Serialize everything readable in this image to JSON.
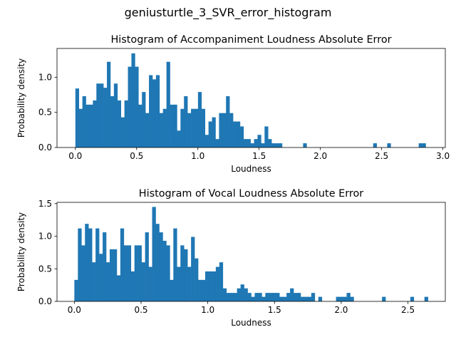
{
  "suptitle": "geniusturtle_3_SVR_error_histogram",
  "colors": {
    "bar": "#1f77b4",
    "axis": "#000000",
    "background": "#ffffff"
  },
  "chart_data": [
    {
      "type": "histogram",
      "title": "Histogram of Accompaniment Loudness Absolute Error",
      "xlabel": "Loudness",
      "ylabel": "Probability density",
      "xlim": [
        -0.15,
        3.02
      ],
      "ylim": [
        0,
        1.41
      ],
      "grid": false,
      "xticks": [
        0.0,
        0.5,
        1.0,
        1.5,
        2.0,
        2.5,
        3.0
      ],
      "xtick_labels": [
        "0.0",
        "0.5",
        "1.0",
        "1.5",
        "2.0",
        "2.5",
        "3.0"
      ],
      "yticks": [
        0.0,
        0.5,
        1.0
      ],
      "ytick_labels": [
        "0.0",
        "0.5",
        "1.0"
      ],
      "bin_start": 0.0,
      "bin_width": 0.0286,
      "densities": [
        0.84,
        0.55,
        0.73,
        0.61,
        0.61,
        0.67,
        0.91,
        0.91,
        0.85,
        1.22,
        0.73,
        0.91,
        0.67,
        0.43,
        0.67,
        1.15,
        1.34,
        1.15,
        0.61,
        0.79,
        0.49,
        1.03,
        0.97,
        1.03,
        0.49,
        0.55,
        1.22,
        0.61,
        0.61,
        0.24,
        0.55,
        0.73,
        0.49,
        0.55,
        0.55,
        0.79,
        0.55,
        0.18,
        0.37,
        0.43,
        0.12,
        0.49,
        0.49,
        0.73,
        0.49,
        0.37,
        0.37,
        0.3,
        0.12,
        0.12,
        0.06,
        0.12,
        0.18,
        0.06,
        0.3,
        0.12,
        0.06,
        0.06,
        0.06,
        0,
        0,
        0,
        0,
        0,
        0,
        0.06,
        0,
        0,
        0,
        0,
        0,
        0,
        0,
        0,
        0,
        0,
        0,
        0,
        0,
        0,
        0,
        0,
        0,
        0,
        0,
        0.06,
        0,
        0,
        0,
        0.06,
        0,
        0,
        0,
        0,
        0,
        0,
        0,
        0,
        0.06,
        0.06
      ]
    },
    {
      "type": "histogram",
      "title": "Histogram of Vocal Loudness Absolute Error",
      "xlabel": "Loudness",
      "ylabel": "Probability density",
      "xlim": [
        -0.13,
        2.78
      ],
      "ylim": [
        0,
        1.52
      ],
      "grid": false,
      "xticks": [
        0.0,
        0.5,
        1.0,
        1.5,
        2.0,
        2.5
      ],
      "xtick_labels": [
        "0.0",
        "0.5",
        "1.0",
        "1.5",
        "2.0",
        "2.5"
      ],
      "yticks": [
        0.0,
        0.5,
        1.0,
        1.5
      ],
      "ytick_labels": [
        "0.0",
        "0.5",
        "1.0",
        "1.5"
      ],
      "bin_start": 0.0,
      "bin_width": 0.0265,
      "densities": [
        0.33,
        1.12,
        0.86,
        1.19,
        1.12,
        0.6,
        1.12,
        0.73,
        1.06,
        0.6,
        0.8,
        0.8,
        0.4,
        1.12,
        0.86,
        0.86,
        0.46,
        0.86,
        0.86,
        0.6,
        1.06,
        0.53,
        1.45,
        1.19,
        1.06,
        0.93,
        0.86,
        0.33,
        1.12,
        0.53,
        0.86,
        0.8,
        0.53,
        0.99,
        0.66,
        0.33,
        0.33,
        0.46,
        0.46,
        0.46,
        0.53,
        0.6,
        0.2,
        0.13,
        0.13,
        0.13,
        0.2,
        0.26,
        0.2,
        0.13,
        0.07,
        0.13,
        0.13,
        0.07,
        0.13,
        0.13,
        0.13,
        0.13,
        0.07,
        0.07,
        0.13,
        0.2,
        0.13,
        0.13,
        0.07,
        0.07,
        0.07,
        0.13,
        0,
        0.07,
        0,
        0,
        0,
        0,
        0.07,
        0.07,
        0.07,
        0.13,
        0.07,
        0,
        0,
        0,
        0,
        0,
        0,
        0,
        0,
        0.07,
        0,
        0,
        0,
        0,
        0,
        0,
        0,
        0.07,
        0,
        0,
        0,
        0.07
      ]
    }
  ]
}
